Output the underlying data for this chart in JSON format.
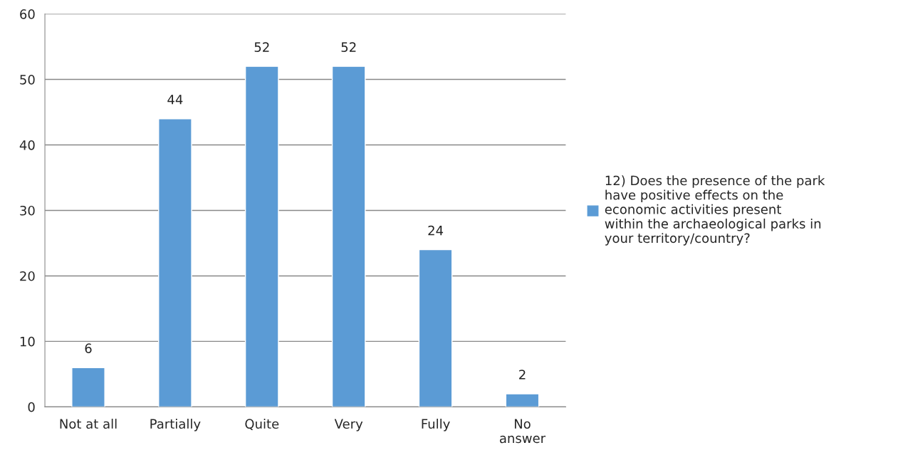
{
  "chart_data": {
    "type": "bar",
    "categories": [
      "Not at all",
      "Partially",
      "Quite",
      "Very",
      "Fully",
      "No\nanswer"
    ],
    "series": [
      {
        "name": "12) Does the presence of the park\nhave positive effects on the\neconomic activities present\nwithin the archaeological parks in\nyour territory/country?",
        "color": "#5b9bd5",
        "values": [
          6,
          44,
          52,
          52,
          24,
          2
        ]
      }
    ],
    "ylim": [
      0,
      60
    ],
    "yticks": [
      0,
      10,
      20,
      30,
      40,
      50,
      60
    ],
    "grid": "y",
    "legend": "right",
    "data_labels": true
  }
}
